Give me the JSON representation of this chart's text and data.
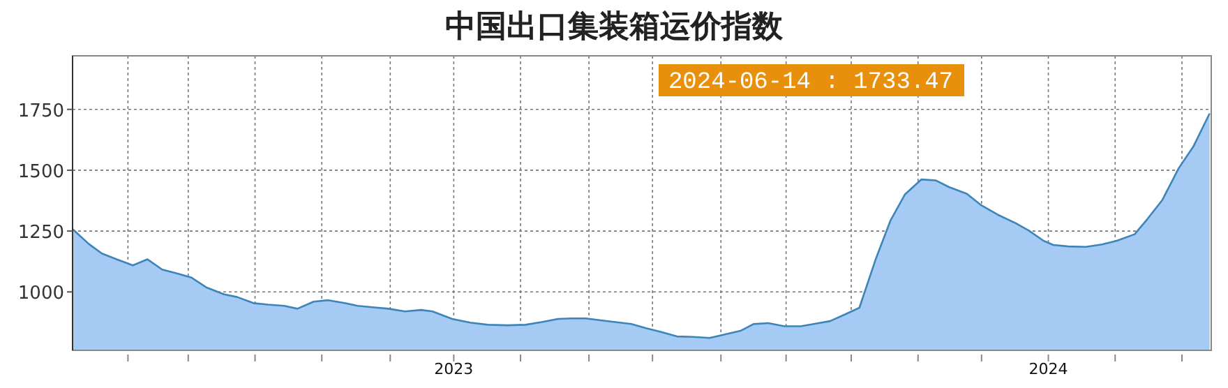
{
  "chart_data": {
    "type": "area",
    "title": "中国出口集装箱运价指数",
    "annotations": [
      "2024-06-14 : 1733.47"
    ],
    "x": [
      "2022-05-12",
      "2022-05-22",
      "2022-05-30",
      "2022-06-08",
      "2022-06-18",
      "2022-06-27",
      "2022-07-06",
      "2022-07-15",
      "2022-07-24",
      "2022-08-02",
      "2022-08-13",
      "2022-08-21",
      "2022-08-31",
      "2022-09-09",
      "2022-09-19",
      "2022-09-27",
      "2022-10-07",
      "2022-10-16",
      "2022-10-26",
      "2022-11-03",
      "2022-11-12",
      "2022-11-22",
      "2022-12-02",
      "2022-12-12",
      "2022-12-19",
      "2022-12-31",
      "2023-01-11",
      "2023-01-22",
      "2023-02-03",
      "2023-02-14",
      "2023-02-24",
      "2023-03-06",
      "2023-03-14",
      "2023-03-23",
      "2023-04-03",
      "2023-04-20",
      "2023-04-29",
      "2023-05-08",
      "2023-05-18",
      "2023-05-28",
      "2023-06-07",
      "2023-06-15",
      "2023-06-26",
      "2023-07-04",
      "2023-07-13",
      "2023-07-23",
      "2023-08-02",
      "2023-08-10",
      "2023-08-20",
      "2023-08-29",
      "2023-09-07",
      "2023-09-17",
      "2023-09-26",
      "2023-10-05",
      "2023-10-15",
      "2023-10-24",
      "2023-11-01",
      "2023-11-12",
      "2023-11-21",
      "2023-12-01",
      "2023-12-12",
      "2023-12-20",
      "2023-12-29",
      "2024-01-04",
      "2024-01-13",
      "2024-01-24",
      "2024-02-03",
      "2024-02-12",
      "2024-02-23",
      "2024-03-02",
      "2024-03-11",
      "2024-03-21",
      "2024-03-30",
      "2024-04-09"
    ],
    "series": [
      {
        "color": "#3d85b8",
        "values": [
          1258,
          1197,
          1158,
          1134,
          1109,
          1134,
          1092,
          1076,
          1059,
          1019,
          990,
          979,
          954,
          948,
          943,
          931,
          960,
          966,
          954,
          943,
          937,
          931,
          920,
          926,
          920,
          889,
          874,
          865,
          863,
          865,
          876,
          889,
          891,
          891,
          882,
          868,
          851,
          836,
          817,
          815,
          811,
          823,
          840,
          868,
          872,
          859,
          859,
          868,
          880,
          907,
          935,
          1134,
          1292,
          1401,
          1462,
          1458,
          1431,
          1403,
          1355,
          1317,
          1282,
          1252,
          1210,
          1193,
          1187,
          1185,
          1195,
          1210,
          1237,
          1301,
          1378,
          1508,
          1597,
          1733.47
        ]
      }
    ],
    "xlim": [
      "2022-05-12",
      "2024-04-10"
    ],
    "xticks": [
      {
        "value": "2022-06-15",
        "label": null
      },
      {
        "value": "2022-07-22",
        "label": null
      },
      {
        "value": "2022-09-01",
        "label": null
      },
      {
        "value": "2022-10-12",
        "label": null
      },
      {
        "value": "2022-11-23",
        "label": null
      },
      {
        "value": "2023-01-01",
        "label": "2023"
      },
      {
        "value": "2023-02-11",
        "label": null
      },
      {
        "value": "2023-03-25",
        "label": null
      },
      {
        "value": "2023-05-03",
        "label": null
      },
      {
        "value": "2023-06-14",
        "label": null
      },
      {
        "value": "2023-07-24",
        "label": null
      },
      {
        "value": "2023-09-02",
        "label": null
      },
      {
        "value": "2023-10-13",
        "label": null
      },
      {
        "value": "2023-11-21",
        "label": null
      },
      {
        "value": "2024-01-01",
        "label": "2024"
      },
      {
        "value": "2024-02-11",
        "label": null
      },
      {
        "value": "2024-03-23",
        "label": null
      }
    ],
    "ylim": [
      760,
      1970
    ],
    "yticks": [
      1000,
      1250,
      1500,
      1750
    ],
    "grid": true
  }
}
